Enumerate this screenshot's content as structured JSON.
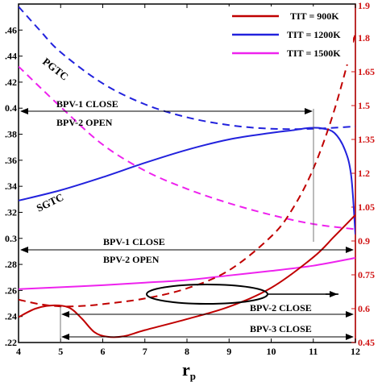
{
  "chart_data": {
    "type": "line",
    "xlabel": "r",
    "xlabel_subscript": "p",
    "xlim": [
      4,
      12
    ],
    "x_ticks": [
      4,
      5,
      6,
      7,
      8,
      9,
      10,
      11,
      12
    ],
    "ylim_left": [
      0.22,
      0.48
    ],
    "left_tick_labels": [
      ".22",
      ".24",
      ".26",
      ".28",
      "0.3",
      ".32",
      ".34",
      ".36",
      ".38",
      "0.4",
      ".42",
      ".44",
      ".46"
    ],
    "left_tick_values": [
      0.22,
      0.24,
      0.26,
      0.28,
      0.3,
      0.32,
      0.34,
      0.36,
      0.38,
      0.4,
      0.42,
      0.44,
      0.46
    ],
    "ylim_right": [
      0.45,
      1.95
    ],
    "right_tick_labels": [
      "0.45",
      "0.6",
      "0.75",
      "0.9",
      "1.05",
      "1.2",
      "1.35",
      "1.5",
      "1.65",
      "1.8"
    ],
    "right_tick_values": [
      0.45,
      0.6,
      0.75,
      0.9,
      1.05,
      1.2,
      1.35,
      1.5,
      1.65,
      1.8
    ],
    "right_top_partial_label": "1.9",
    "legend_position": "top-right",
    "legend": [
      {
        "label": "TIT = 900K",
        "color": "#c00000"
      },
      {
        "label": "TIT = 1200K",
        "color": "#2222dd"
      },
      {
        "label": "TIT = 1500K",
        "color": "#ee22ee"
      }
    ],
    "series": [
      {
        "color": "#2222dd",
        "style": "solid",
        "axis": "left",
        "curve_label": "SGTC",
        "points": [
          [
            4,
            0.329
          ],
          [
            5,
            0.337
          ],
          [
            6,
            0.347
          ],
          [
            7,
            0.358
          ],
          [
            8,
            0.368
          ],
          [
            9,
            0.376
          ],
          [
            10,
            0.381
          ],
          [
            10.5,
            0.383
          ],
          [
            10.9,
            0.3848
          ],
          [
            11.2,
            0.3845
          ],
          [
            11.5,
            0.381
          ],
          [
            11.75,
            0.368
          ],
          [
            11.9,
            0.348
          ],
          [
            12,
            0.303
          ]
        ]
      },
      {
        "color": "#2222dd",
        "style": "dashed",
        "axis": "left",
        "curve_label": "PGTC",
        "points": [
          [
            4,
            0.478
          ],
          [
            4.5,
            0.46
          ],
          [
            5,
            0.443
          ],
          [
            6,
            0.419
          ],
          [
            7,
            0.403
          ],
          [
            8,
            0.393
          ],
          [
            9,
            0.387
          ],
          [
            10,
            0.3842
          ],
          [
            11,
            0.3842
          ],
          [
            12,
            0.386
          ]
        ]
      },
      {
        "color": "#ee22ee",
        "style": "solid",
        "axis": "left",
        "points": [
          [
            4,
            0.261
          ],
          [
            5,
            0.2625
          ],
          [
            6,
            0.264
          ],
          [
            7,
            0.266
          ],
          [
            8,
            0.268
          ],
          [
            9,
            0.2715
          ],
          [
            10,
            0.275
          ],
          [
            11,
            0.279
          ],
          [
            12,
            0.285
          ]
        ]
      },
      {
        "color": "#ee22ee",
        "style": "dashed",
        "axis": "left",
        "points": [
          [
            4,
            0.432
          ],
          [
            5,
            0.401
          ],
          [
            6,
            0.372
          ],
          [
            7,
            0.352
          ],
          [
            8,
            0.338
          ],
          [
            9,
            0.327
          ],
          [
            10,
            0.318
          ],
          [
            11,
            0.311
          ],
          [
            12,
            0.307
          ]
        ]
      },
      {
        "color": "#c00000",
        "style": "solid",
        "axis": "left",
        "points": [
          [
            4,
            0.2395
          ],
          [
            4.4,
            0.246
          ],
          [
            4.8,
            0.2485
          ],
          [
            5.2,
            0.2468
          ],
          [
            5.5,
            0.2385
          ],
          [
            5.8,
            0.228
          ],
          [
            6.1,
            0.2245
          ],
          [
            6.5,
            0.2248
          ],
          [
            7,
            0.2295
          ],
          [
            8,
            0.238
          ],
          [
            9,
            0.2475
          ],
          [
            10,
            0.262
          ],
          [
            11,
            0.2855
          ],
          [
            11.5,
            0.3015
          ],
          [
            12,
            0.318
          ]
        ]
      },
      {
        "color": "#c00000",
        "style": "dashed",
        "axis": "right",
        "points": [
          [
            4,
            0.64
          ],
          [
            4.5,
            0.62
          ],
          [
            5,
            0.61
          ],
          [
            5.5,
            0.612
          ],
          [
            6,
            0.62
          ],
          [
            7,
            0.645
          ],
          [
            8,
            0.69
          ],
          [
            9,
            0.77
          ],
          [
            10,
            0.92
          ],
          [
            10.5,
            1.04
          ],
          [
            11,
            1.22
          ],
          [
            11.5,
            1.48
          ],
          [
            12,
            1.82
          ]
        ]
      }
    ],
    "annotations": [
      {
        "text": "BPV-1 CLOSE"
      },
      {
        "text": "BPV-2 OPEN"
      },
      {
        "text": "BPV-1 CLOSE"
      },
      {
        "text": "BPV-2 OPEN"
      },
      {
        "text": "BPV-2 CLOSE"
      },
      {
        "text": "BPV-3 CLOSE"
      }
    ]
  }
}
